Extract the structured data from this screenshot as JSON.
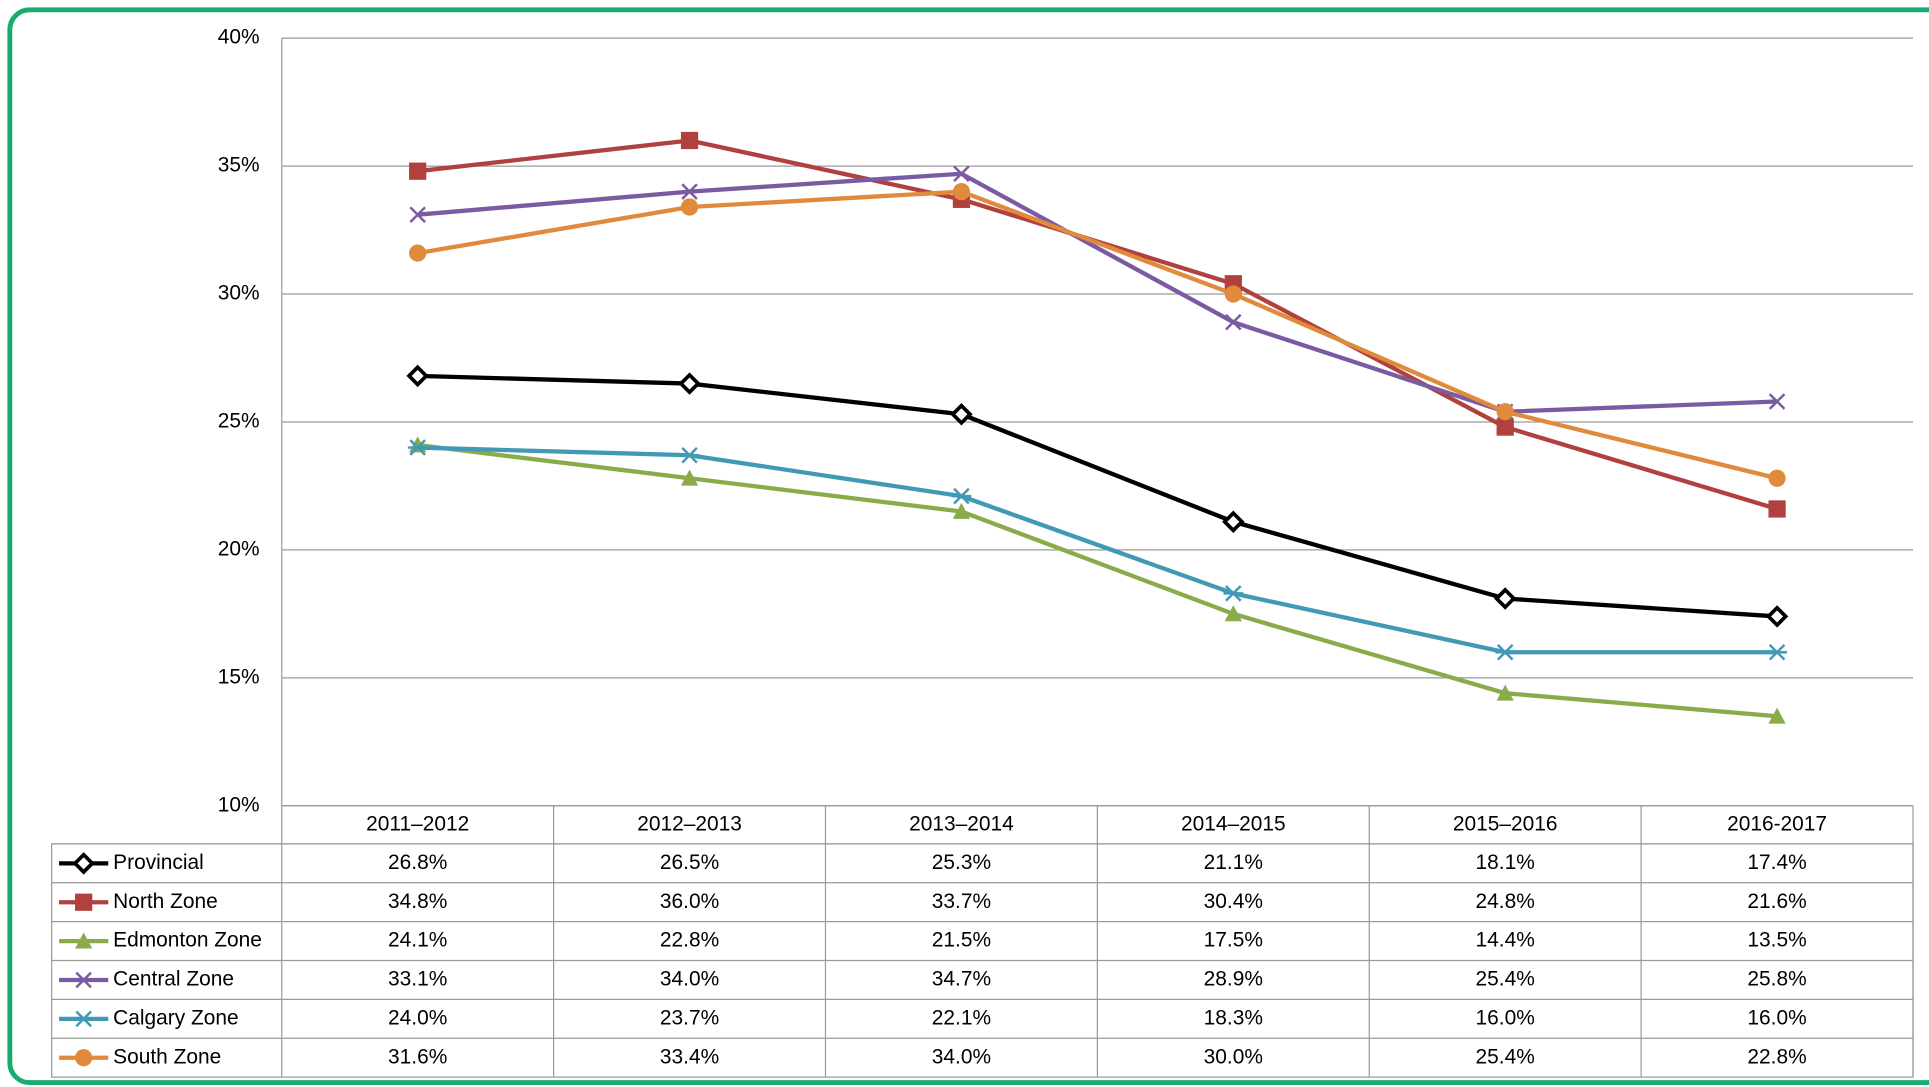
{
  "chart_data": {
    "type": "line",
    "categories": [
      "2011–2012",
      "2012–2013",
      "2013–2014",
      "2014–2015",
      "2015–2016",
      "2016-2017"
    ],
    "series": [
      {
        "name": "Provincial",
        "color": "#000000",
        "marker": "diamond",
        "values": [
          26.8,
          26.5,
          25.3,
          21.1,
          18.1,
          17.4
        ],
        "value_labels": [
          "26.8%",
          "26.5%",
          "25.3%",
          "21.1%",
          "18.1%",
          "17.4%"
        ]
      },
      {
        "name": "North Zone",
        "color": "#b0413e",
        "marker": "square",
        "values": [
          34.8,
          36.0,
          33.7,
          30.4,
          24.8,
          21.6
        ],
        "value_labels": [
          "34.8%",
          "36.0%",
          "33.7%",
          "30.4%",
          "24.8%",
          "21.6%"
        ]
      },
      {
        "name": "Edmonton Zone",
        "color": "#8aab4a",
        "marker": "triangle",
        "values": [
          24.1,
          22.8,
          21.5,
          17.5,
          14.4,
          13.5
        ],
        "value_labels": [
          "24.1%",
          "22.8%",
          "21.5%",
          "17.5%",
          "14.4%",
          "13.5%"
        ]
      },
      {
        "name": "Central Zone",
        "color": "#7a5aa0",
        "marker": "x",
        "values": [
          33.1,
          34.0,
          34.7,
          28.9,
          25.4,
          25.8
        ],
        "value_labels": [
          "33.1%",
          "34.0%",
          "34.7%",
          "28.9%",
          "25.4%",
          "25.8%"
        ]
      },
      {
        "name": "Calgary Zone",
        "color": "#4199b5",
        "marker": "star",
        "values": [
          24.0,
          23.7,
          22.1,
          18.3,
          16.0,
          16.0
        ],
        "value_labels": [
          "24.0%",
          "23.7%",
          "22.1%",
          "18.3%",
          "16.0%",
          "16.0%"
        ]
      },
      {
        "name": "South Zone",
        "color": "#e08a3c",
        "marker": "circle",
        "values": [
          31.6,
          33.4,
          34.0,
          30.0,
          25.4,
          22.8
        ],
        "value_labels": [
          "31.6%",
          "33.4%",
          "34.0%",
          "30.0%",
          "25.4%",
          "22.8%"
        ]
      }
    ],
    "ylim": [
      10,
      40
    ],
    "yticks": [
      {
        "value": 10,
        "label": "10%"
      },
      {
        "value": 15,
        "label": "15%"
      },
      {
        "value": 20,
        "label": "20%"
      },
      {
        "value": 25,
        "label": "25%"
      },
      {
        "value": 30,
        "label": "30%"
      },
      {
        "value": 35,
        "label": "35%"
      },
      {
        "value": 40,
        "label": "40%"
      }
    ],
    "grid": true
  }
}
